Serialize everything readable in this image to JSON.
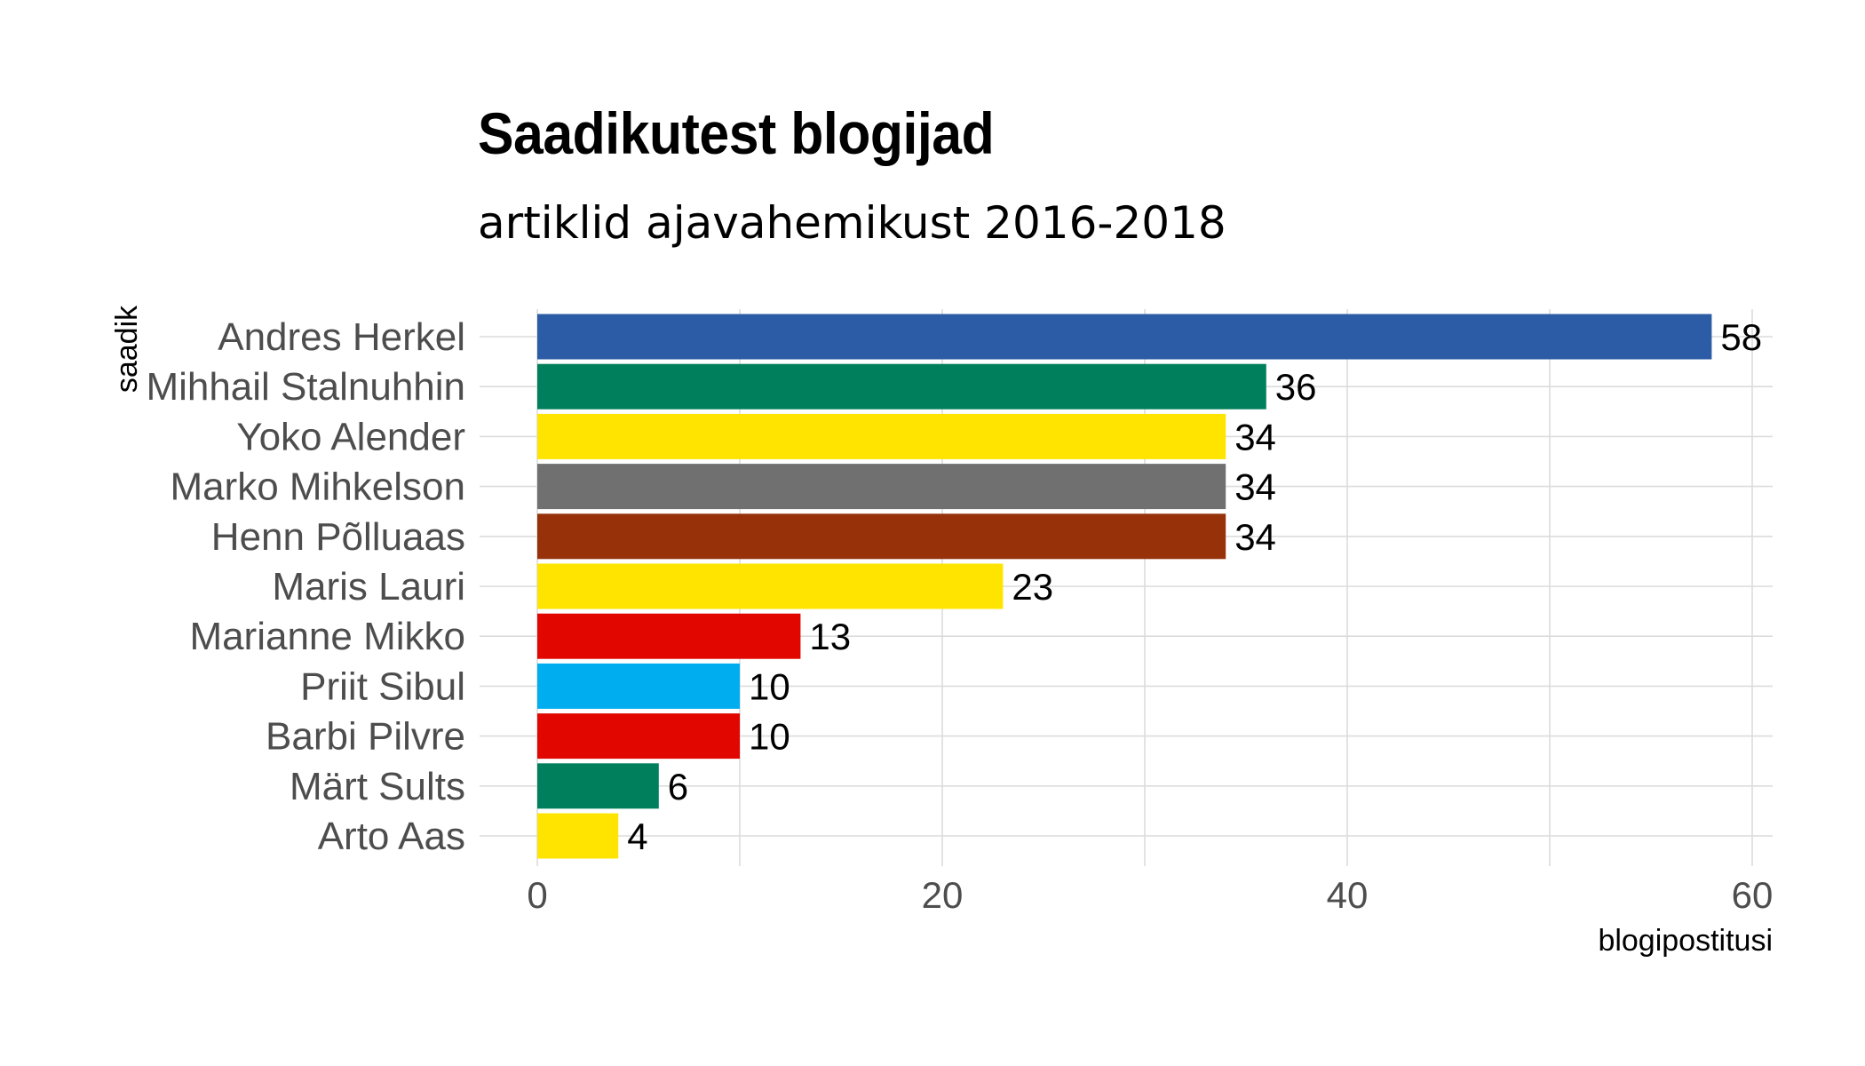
{
  "chart_data": {
    "type": "bar",
    "orientation": "horizontal",
    "title": "Saadikutest blogijad",
    "subtitle": "artiklid ajavahemikust 2016-2018",
    "xlabel": "blogipostitusi",
    "ylabel": "saadik",
    "xlim": [
      0,
      60
    ],
    "xticks": [
      0,
      20,
      40,
      60
    ],
    "grid": true,
    "categories": [
      "Andres Herkel",
      "Mihhail Stalnuhhin",
      "Yoko Alender",
      "Marko Mihkelson",
      "Henn Põlluaas",
      "Maris Lauri",
      "Marianne Mikko",
      "Priit Sibul",
      "Barbi Pilvre",
      "Märt Sults",
      "Arto Aas"
    ],
    "values": [
      58,
      36,
      34,
      34,
      34,
      23,
      13,
      10,
      10,
      6,
      4
    ],
    "colors": [
      "#2B5CA5",
      "#007F5C",
      "#FFE400",
      "#707070",
      "#96310A",
      "#FFE400",
      "#E10600",
      "#00AEEF",
      "#E10600",
      "#007F5C",
      "#FFE400"
    ]
  }
}
